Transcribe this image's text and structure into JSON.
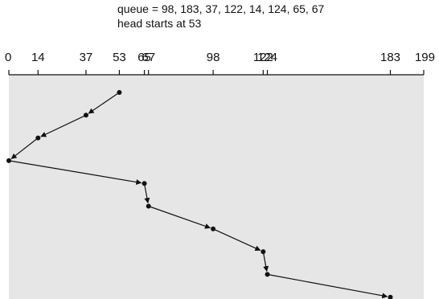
{
  "header": {
    "queue_text": "queue = 98, 183, 37, 122, 14, 124, 65, 67",
    "head_text": "head starts at 53"
  },
  "axis": {
    "min": 0,
    "max": 199,
    "ticks": [
      0,
      14,
      37,
      53,
      65,
      67,
      98,
      122,
      124,
      183,
      199
    ],
    "tick_labels": [
      "0",
      "14",
      "37",
      "53",
      "65",
      "67",
      "98",
      "122",
      "124",
      "183",
      "199"
    ]
  },
  "schedule": {
    "head_start": 53,
    "path": [
      53,
      37,
      14,
      0,
      65,
      67,
      98,
      122,
      124,
      183
    ]
  },
  "colors": {
    "panel": "#e6e6e6",
    "line": "#111111"
  }
}
